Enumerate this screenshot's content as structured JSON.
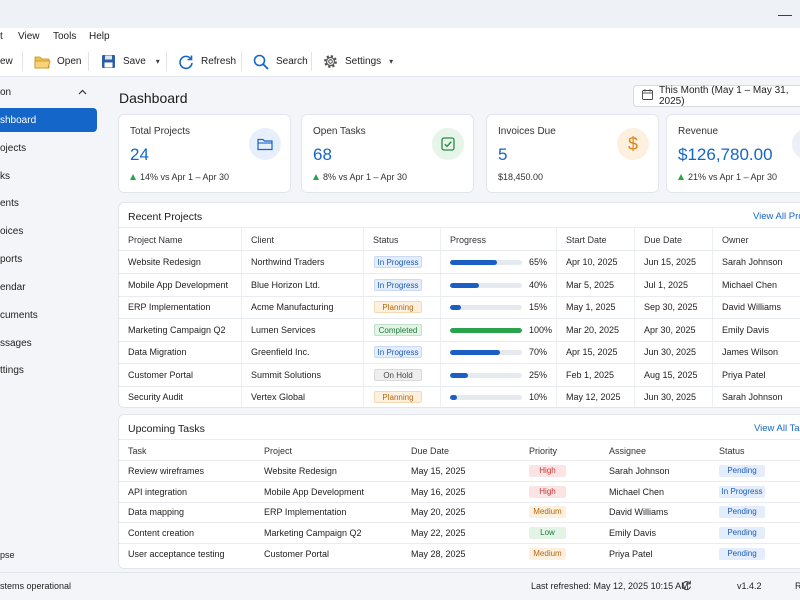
{
  "window": {
    "minimize_symbol": "—"
  },
  "menu": {
    "items": [
      "t",
      "View",
      "Tools",
      "Help"
    ]
  },
  "toolbar": {
    "new_label": "ew",
    "open_label": "Open",
    "save_label": "Save",
    "refresh_label": "Refresh",
    "search_label": "Search",
    "settings_label": "Settings"
  },
  "sidebar": {
    "section_title": "on",
    "items": [
      {
        "label": "shboard",
        "active": true
      },
      {
        "label": "ojects",
        "active": false
      },
      {
        "label": "ks",
        "active": false
      },
      {
        "label": "ents",
        "active": false
      },
      {
        "label": "oices",
        "active": false
      },
      {
        "label": "ports",
        "active": false
      },
      {
        "label": "endar",
        "active": false
      },
      {
        "label": "cuments",
        "active": false
      },
      {
        "label": "ssages",
        "active": false
      },
      {
        "label": "ttings",
        "active": false
      }
    ],
    "collapse_label": "pse"
  },
  "header": {
    "title": "Dashboard",
    "date_range": "This Month (May 1 – May 31, 2025)"
  },
  "cards": [
    {
      "label": "Total Projects",
      "value": "24",
      "sub": "14% vs Apr 1 – Apr 30",
      "trend": "up",
      "icon": "folder-icon",
      "circle_color": "#e7effa"
    },
    {
      "label": "Open Tasks",
      "value": "68",
      "sub": "8% vs Apr 1 – Apr 30",
      "trend": "up",
      "icon": "checkbox-icon",
      "circle_color": "#e6f4ea"
    },
    {
      "label": "Invoices Due",
      "value": "5",
      "sub": "$18,450.00",
      "trend": "none",
      "icon": "dollar-icon",
      "circle_color": "#fdf0df"
    },
    {
      "label": "Revenue",
      "value": "$126,780.00",
      "sub": "21% vs Apr 1 – Apr 30",
      "trend": "up",
      "icon": "revenue-icon",
      "circle_color": "#eceff6"
    }
  ],
  "recent_projects": {
    "title": "Recent Projects",
    "view_all": "View All Projects",
    "columns": [
      "Project Name",
      "Client",
      "Status",
      "Progress",
      "Start Date",
      "Due Date",
      "Owner"
    ],
    "rows": [
      {
        "name": "Website Redesign",
        "client": "Northwind Traders",
        "status": "In Progress",
        "status_key": "inprogress",
        "progress": 65,
        "progress_label": "65%",
        "start": "Apr 10, 2025",
        "due": "Jun 15, 2025",
        "owner": "Sarah Johnson"
      },
      {
        "name": "Mobile App Development",
        "client": "Blue Horizon Ltd.",
        "status": "In Progress",
        "status_key": "inprogress",
        "progress": 40,
        "progress_label": "40%",
        "start": "Mar 5, 2025",
        "due": "Jul 1, 2025",
        "owner": "Michael Chen"
      },
      {
        "name": "ERP Implementation",
        "client": "Acme Manufacturing",
        "status": "Planning",
        "status_key": "planning",
        "progress": 15,
        "progress_label": "15%",
        "start": "May 1, 2025",
        "due": "Sep 30, 2025",
        "owner": "David Williams"
      },
      {
        "name": "Marketing Campaign Q2",
        "client": "Lumen Services",
        "status": "Completed",
        "status_key": "completed",
        "progress": 100,
        "progress_label": "100%",
        "start": "Mar 20, 2025",
        "due": "Apr 30, 2025",
        "owner": "Emily Davis"
      },
      {
        "name": "Data Migration",
        "client": "Greenfield Inc.",
        "status": "In Progress",
        "status_key": "inprogress",
        "progress": 70,
        "progress_label": "70%",
        "start": "Apr 15, 2025",
        "due": "Jun 30, 2025",
        "owner": "James Wilson"
      },
      {
        "name": "Customer Portal",
        "client": "Summit Solutions",
        "status": "On Hold",
        "status_key": "onhold",
        "progress": 25,
        "progress_label": "25%",
        "start": "Feb 1, 2025",
        "due": "Aug 15, 2025",
        "owner": "Priya Patel"
      },
      {
        "name": "Security Audit",
        "client": "Vertex Global",
        "status": "Planning",
        "status_key": "planning",
        "progress": 10,
        "progress_label": "10%",
        "start": "May 12, 2025",
        "due": "Jun 30, 2025",
        "owner": "Sarah Johnson"
      }
    ]
  },
  "upcoming_tasks": {
    "title": "Upcoming Tasks",
    "view_all": "View All Tasks",
    "columns": [
      "Task",
      "Project",
      "Due Date",
      "Priority",
      "Assignee",
      "Status"
    ],
    "rows": [
      {
        "task": "Review wireframes",
        "project": "Website Redesign",
        "due": "May 15, 2025",
        "priority": "High",
        "priority_key": "high",
        "assignee": "Sarah Johnson",
        "status": "Pending"
      },
      {
        "task": "API integration",
        "project": "Mobile App Development",
        "due": "May 16, 2025",
        "priority": "High",
        "priority_key": "high",
        "assignee": "Michael Chen",
        "status": "In Progress"
      },
      {
        "task": "Data mapping",
        "project": "ERP Implementation",
        "due": "May 20, 2025",
        "priority": "Medium",
        "priority_key": "medium",
        "assignee": "David Williams",
        "status": "Pending"
      },
      {
        "task": "Content creation",
        "project": "Marketing Campaign Q2",
        "due": "May 22, 2025",
        "priority": "Low",
        "priority_key": "low",
        "assignee": "Emily Davis",
        "status": "Pending"
      },
      {
        "task": "User acceptance testing",
        "project": "Customer Portal",
        "due": "May 28, 2025",
        "priority": "Medium",
        "priority_key": "medium",
        "assignee": "Priya Patel",
        "status": "Pending"
      }
    ]
  },
  "statusbar": {
    "left": "stems operational",
    "refreshed": "Last refreshed: May 12, 2025 10:15 AM",
    "version": "v1.4.2",
    "right_char": "R"
  },
  "colors": {
    "accent": "#1466c9",
    "progress_blue": "#1a5fc4",
    "progress_green": "#2ba24c",
    "trend_up": "#2ba24c"
  }
}
